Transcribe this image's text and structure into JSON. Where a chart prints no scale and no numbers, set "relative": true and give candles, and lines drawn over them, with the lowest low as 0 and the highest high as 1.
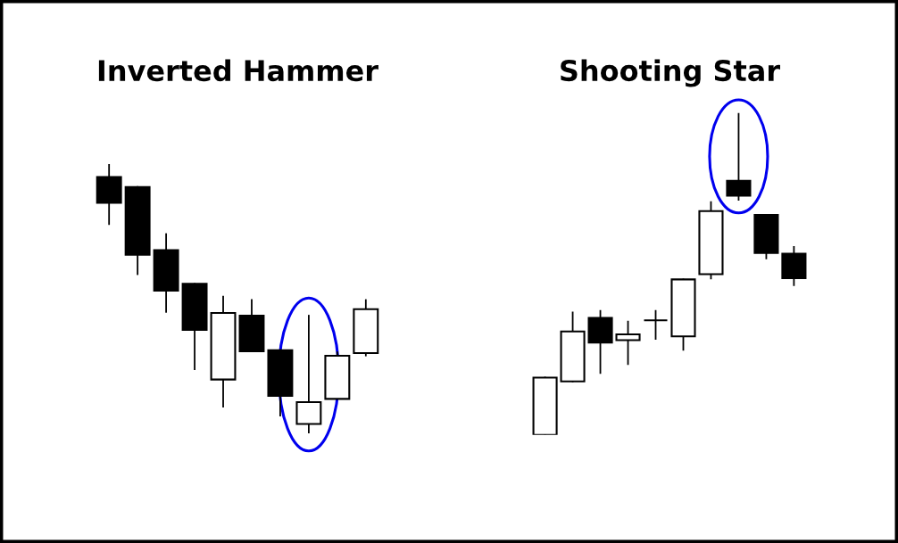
{
  "chart_data": [
    {
      "type": "candlestick",
      "title": "Inverted Hammer",
      "relative": true,
      "categories": [
        null,
        null,
        null,
        null,
        null,
        null,
        null,
        null,
        null,
        null
      ],
      "ohlc": [
        [
          0.952,
          1,
          0.777,
          0.856
        ],
        [
          0.915,
          0.915,
          0.591,
          0.663
        ],
        [
          0.68,
          0.74,
          0.451,
          0.53
        ],
        [
          0.555,
          0.555,
          0.238,
          0.384
        ],
        [
          0.2,
          0.508,
          0.099,
          0.447
        ],
        [
          0.437,
          0.495,
          0.305,
          0.305
        ],
        [
          0.309,
          0.309,
          0.066,
          0.139
        ],
        [
          0.035,
          0.437,
          0,
          0.116
        ],
        [
          0.128,
          0.301,
          0.128,
          0.288
        ],
        [
          0.298,
          0.495,
          0.289,
          0.461
        ]
      ]
    },
    {
      "type": "candlestick",
      "title": "Shooting Star",
      "relative": true,
      "categories": [
        null,
        null,
        null,
        null,
        null,
        null,
        null,
        null,
        null,
        null
      ],
      "ohlc": [
        [
          0,
          0.178,
          0,
          0.178
        ],
        [
          0.166,
          0.38,
          0.166,
          0.321
        ],
        [
          0.363,
          0.385,
          0.192,
          0.287
        ],
        [
          0.294,
          0.352,
          0.22,
          0.312
        ],
        [
          0.356,
          0.385,
          0.298,
          0.356
        ],
        [
          0.306,
          0.483,
          0.264,
          0.483
        ],
        [
          0.499,
          0.723,
          0.486,
          0.695
        ],
        [
          0.789,
          1,
          0.73,
          0.743
        ],
        [
          0.683,
          0.683,
          0.548,
          0.565
        ],
        [
          0.563,
          0.584,
          0.465,
          0.487
        ]
      ]
    }
  ]
}
